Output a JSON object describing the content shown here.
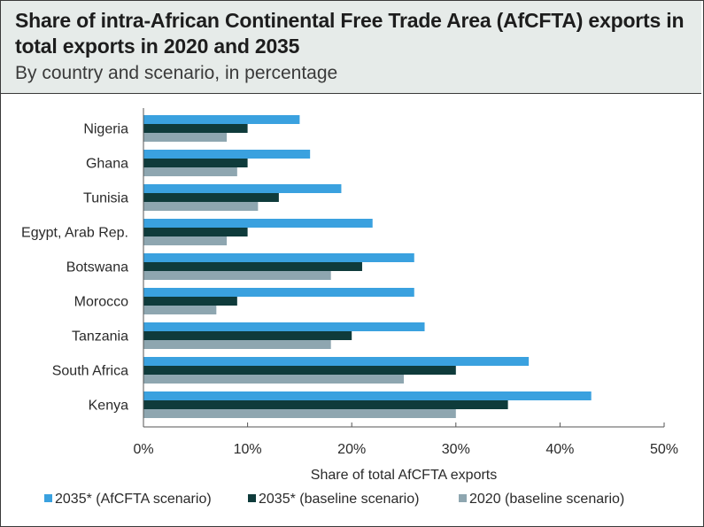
{
  "header": {
    "title": "Share of intra-African Continental Free Trade Area (AfCFTA) exports in total exports in 2020 and 2035",
    "subtitle": "By country and scenario, in percentage"
  },
  "colors": {
    "afcfta_2035": "#3aa1df",
    "baseline_2035": "#0f3b3b",
    "baseline_2020": "#8ea6b0"
  },
  "chart_data": {
    "type": "bar",
    "orientation": "horizontal",
    "title": "Share of intra-African Continental Free Trade Area (AfCFTA) exports in total exports in 2020 and 2035",
    "subtitle": "By country and scenario, in percentage",
    "categories": [
      "Nigeria",
      "Ghana",
      "Tunisia",
      "Egypt, Arab Rep.",
      "Botswana",
      "Morocco",
      "Tanzania",
      "South Africa",
      "Kenya"
    ],
    "series": [
      {
        "name": "2035* (AfCFTA scenario)",
        "values": [
          15,
          16,
          19,
          22,
          26,
          26,
          27,
          37,
          43
        ]
      },
      {
        "name": "2035* (baseline scenario)",
        "values": [
          10,
          10,
          13,
          10,
          21,
          9,
          20,
          30,
          35
        ]
      },
      {
        "name": "2020 (baseline scenario)",
        "values": [
          8,
          9,
          11,
          8,
          18,
          7,
          18,
          25,
          30
        ]
      }
    ],
    "xlabel": "Share of total AfCFTA exports",
    "ylabel": "",
    "xlim": [
      0,
      50
    ],
    "x_ticks": [
      "0%",
      "10%",
      "20%",
      "30%",
      "40%",
      "50%"
    ],
    "grid": false,
    "legend_position": "bottom"
  }
}
